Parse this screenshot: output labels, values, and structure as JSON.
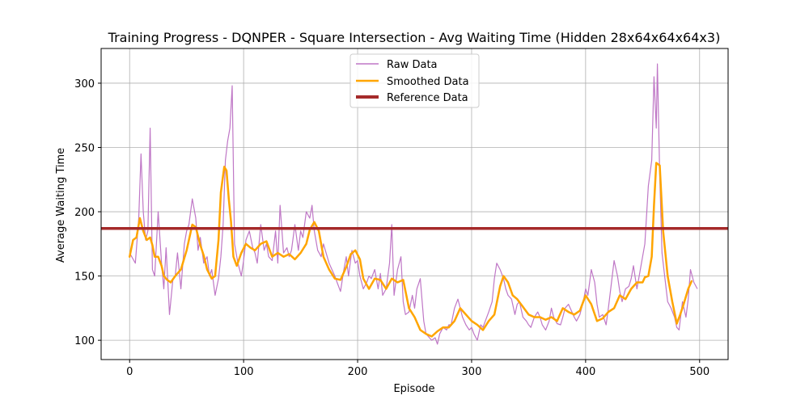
{
  "chart_data": {
    "type": "line",
    "title": "Training Progress - DQNPER - Square Intersection - Avg Waiting Time (Hidden 28x64x64x64x3)",
    "xlabel": "Episode",
    "ylabel": "Average Waiting Time",
    "xlim": [
      -25,
      525
    ],
    "ylim": [
      85,
      327
    ],
    "xticks": [
      0,
      100,
      200,
      300,
      400,
      500
    ],
    "yticks": [
      100,
      150,
      200,
      250,
      300
    ],
    "grid": true,
    "legend_position": "top-center",
    "colors": {
      "raw": "#bf77c6",
      "smoothed": "#ffa500",
      "reference": "#a52a2a",
      "grid": "#b0b0b0"
    },
    "series": [
      {
        "name": "Raw Data",
        "style": "thin-line",
        "x": [
          0,
          5,
          8,
          10,
          12,
          14,
          16,
          18,
          20,
          22,
          25,
          28,
          30,
          32,
          35,
          38,
          40,
          42,
          45,
          48,
          50,
          52,
          55,
          58,
          60,
          62,
          65,
          68,
          70,
          72,
          75,
          78,
          80,
          82,
          84,
          86,
          88,
          90,
          92,
          95,
          98,
          100,
          102,
          105,
          108,
          110,
          112,
          115,
          118,
          120,
          122,
          125,
          128,
          130,
          132,
          135,
          138,
          140,
          142,
          145,
          148,
          150,
          152,
          155,
          158,
          160,
          162,
          165,
          168,
          170,
          175,
          180,
          182,
          185,
          188,
          190,
          192,
          195,
          198,
          200,
          202,
          205,
          208,
          210,
          212,
          215,
          218,
          220,
          222,
          225,
          228,
          230,
          232,
          235,
          238,
          240,
          242,
          245,
          248,
          250,
          252,
          255,
          258,
          260,
          262,
          265,
          268,
          270,
          272,
          275,
          278,
          280,
          282,
          285,
          288,
          290,
          292,
          295,
          298,
          300,
          302,
          305,
          308,
          310,
          312,
          315,
          318,
          320,
          322,
          325,
          328,
          330,
          332,
          335,
          338,
          340,
          342,
          345,
          348,
          350,
          352,
          355,
          358,
          360,
          362,
          365,
          368,
          370,
          372,
          375,
          378,
          380,
          382,
          385,
          388,
          390,
          392,
          395,
          398,
          400,
          402,
          405,
          408,
          410,
          412,
          415,
          418,
          420,
          422,
          425,
          428,
          430,
          432,
          435,
          438,
          440,
          442,
          445,
          448,
          450,
          452,
          455,
          458,
          460,
          462,
          463,
          465,
          467,
          470,
          472,
          475,
          478,
          480,
          482,
          485,
          488,
          490,
          492,
          495,
          498
        ],
        "values": [
          168,
          160,
          195,
          245,
          200,
          178,
          185,
          265,
          155,
          150,
          200,
          160,
          140,
          172,
          120,
          148,
          150,
          168,
          140,
          175,
          185,
          190,
          210,
          195,
          170,
          180,
          160,
          165,
          150,
          155,
          135,
          148,
          165,
          190,
          240,
          255,
          265,
          298,
          175,
          160,
          150,
          162,
          178,
          185,
          172,
          168,
          160,
          190,
          170,
          175,
          165,
          162,
          185,
          160,
          205,
          168,
          172,
          165,
          170,
          190,
          170,
          185,
          180,
          200,
          195,
          205,
          185,
          170,
          165,
          175,
          160,
          150,
          145,
          138,
          155,
          165,
          150,
          170,
          160,
          162,
          150,
          140,
          145,
          150,
          148,
          155,
          140,
          152,
          135,
          140,
          160,
          190,
          135,
          155,
          165,
          130,
          120,
          122,
          135,
          125,
          140,
          148,
          115,
          105,
          103,
          100,
          102,
          97,
          105,
          110,
          108,
          112,
          112,
          125,
          132,
          125,
          118,
          112,
          108,
          110,
          105,
          100,
          112,
          110,
          115,
          122,
          130,
          148,
          160,
          155,
          148,
          140,
          135,
          132,
          120,
          128,
          130,
          118,
          115,
          112,
          110,
          118,
          122,
          118,
          112,
          108,
          115,
          125,
          118,
          113,
          112,
          118,
          125,
          128,
          122,
          118,
          115,
          120,
          130,
          140,
          135,
          155,
          145,
          128,
          118,
          120,
          112,
          125,
          140,
          162,
          150,
          138,
          130,
          140,
          142,
          148,
          158,
          140,
          155,
          165,
          175,
          220,
          240,
          305,
          265,
          315,
          228,
          168,
          145,
          130,
          125,
          118,
          110,
          108,
          130,
          118,
          132,
          155,
          145,
          140
        ]
      },
      {
        "name": "Smoothed Data",
        "style": "thick-line",
        "x": [
          0,
          3,
          6,
          9,
          12,
          15,
          18,
          20,
          22,
          25,
          28,
          30,
          33,
          36,
          40,
          45,
          50,
          55,
          58,
          62,
          65,
          68,
          72,
          75,
          78,
          80,
          83,
          85,
          87,
          89,
          91,
          94,
          98,
          102,
          106,
          110,
          115,
          120,
          125,
          130,
          135,
          140,
          145,
          150,
          155,
          158,
          162,
          166,
          170,
          175,
          180,
          185,
          190,
          194,
          198,
          202,
          205,
          210,
          215,
          220,
          225,
          230,
          235,
          240,
          245,
          250,
          255,
          260,
          265,
          270,
          275,
          280,
          285,
          290,
          295,
          300,
          305,
          310,
          315,
          320,
          325,
          328,
          332,
          336,
          340,
          345,
          350,
          355,
          360,
          365,
          370,
          375,
          380,
          385,
          390,
          395,
          400,
          405,
          410,
          415,
          420,
          425,
          430,
          435,
          440,
          445,
          450,
          452,
          455,
          458,
          460,
          462,
          465,
          468,
          472,
          476,
          480,
          483,
          486,
          490,
          493
        ],
        "values": [
          165,
          178,
          180,
          195,
          185,
          178,
          180,
          174,
          165,
          165,
          158,
          150,
          147,
          145,
          150,
          155,
          170,
          190,
          188,
          174,
          166,
          155,
          148,
          150,
          178,
          215,
          235,
          232,
          210,
          192,
          165,
          158,
          168,
          175,
          172,
          170,
          175,
          177,
          165,
          168,
          165,
          167,
          163,
          168,
          175,
          186,
          192,
          185,
          165,
          155,
          148,
          147,
          157,
          167,
          170,
          163,
          148,
          140,
          148,
          147,
          140,
          148,
          145,
          147,
          125,
          118,
          108,
          105,
          103,
          107,
          110,
          110,
          115,
          125,
          120,
          115,
          112,
          108,
          115,
          120,
          142,
          150,
          145,
          135,
          132,
          126,
          120,
          118,
          118,
          116,
          118,
          115,
          125,
          122,
          120,
          123,
          135,
          128,
          115,
          117,
          122,
          125,
          135,
          132,
          140,
          145,
          145,
          149,
          150,
          165,
          205,
          238,
          236,
          185,
          150,
          130,
          113,
          120,
          128,
          140,
          146
        ]
      },
      {
        "name": "Reference Data",
        "style": "horizontal-line",
        "value": 187
      }
    ]
  }
}
